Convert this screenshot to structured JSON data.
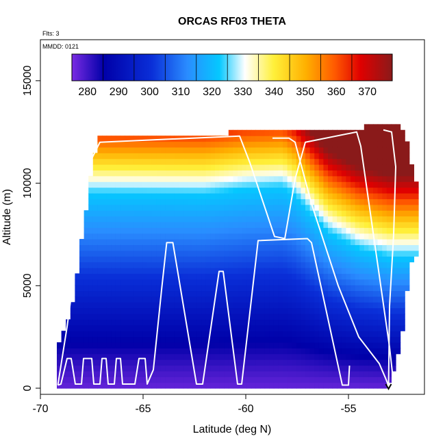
{
  "chart_data": {
    "type": "heatmap",
    "title": "ORCAS RF03 THETA",
    "annotations": {
      "flights": "Flts: 3",
      "date": "MMDD: 0121"
    },
    "xlabel": "Latitude (deg N)",
    "ylabel": "Altitude (m)",
    "xlim": [
      -70,
      -51.3
    ],
    "ylim": [
      -300,
      17000
    ],
    "xticks": [
      -70,
      -65,
      -60,
      -55
    ],
    "xtick_labels": [
      "-70",
      "-65",
      "-60",
      "-55"
    ],
    "yticks": [
      0,
      5000,
      10000,
      15000
    ],
    "ytick_labels": [
      "0",
      "5000",
      "10000",
      "15000"
    ],
    "colorbar": {
      "min": 275,
      "max": 378,
      "ticks": [
        280,
        290,
        300,
        310,
        320,
        330,
        340,
        350,
        360,
        370
      ],
      "tick_labels": [
        "280",
        "290",
        "300",
        "310",
        "320",
        "330",
        "340",
        "350",
        "360",
        "370"
      ],
      "boundaries": [
        285,
        295,
        305,
        315,
        325,
        335,
        345,
        355,
        365
      ],
      "colors": [
        "#7a2be3",
        "#0000a8",
        "#0a2fd8",
        "#2a8cff",
        "#05c8ff",
        "#ffffff",
        "#fff03a",
        "#ffb000",
        "#ff5a00",
        "#e00000",
        "#8a1a1a"
      ],
      "color_positions": [
        0,
        0.1,
        0.25,
        0.36,
        0.46,
        0.54,
        0.63,
        0.73,
        0.82,
        0.9,
        1.0
      ]
    },
    "field": {
      "lat_range": [
        -69.2,
        -51.8
      ],
      "lat_step": 0.22,
      "alt_step": 280,
      "top_alt_profile": [
        [
          -69.2,
          2000
        ],
        [
          -68.5,
          3500
        ],
        [
          -67.5,
          10500
        ],
        [
          -67.2,
          12200
        ],
        [
          -61,
          12200
        ],
        [
          -60.5,
          12500
        ],
        [
          -54.5,
          12500
        ],
        [
          -54.2,
          12700
        ],
        [
          -52.4,
          12700
        ],
        [
          -52.1,
          11600
        ],
        [
          -51.8,
          10000
        ]
      ],
      "bottom_alt_profile": [
        [
          -69.2,
          0
        ],
        [
          -54,
          0
        ],
        [
          -53,
          300
        ],
        [
          -52.5,
          2000
        ],
        [
          -52,
          6000
        ],
        [
          -51.8,
          6500
        ]
      ],
      "tropopause_profile": [
        [
          -70,
          9500
        ],
        [
          -62,
          9450
        ],
        [
          -60,
          9700
        ],
        [
          -58.2,
          9800
        ],
        [
          -57.6,
          9400
        ],
        [
          -57,
          8700
        ],
        [
          -56,
          7600
        ],
        [
          -54.5,
          6800
        ],
        [
          -53,
          6400
        ],
        [
          -52,
          6400
        ]
      ],
      "theta_surface": 277,
      "theta_at_tropopause": 322,
      "lapse_low_per_km": 4.5,
      "lapse_high_per_km": 14
    },
    "flight_track": [
      [
        -69.15,
        150
      ],
      [
        -69.0,
        200
      ],
      [
        -68.7,
        1450
      ],
      [
        -68.5,
        1450
      ],
      [
        -68.3,
        200
      ],
      [
        -68.0,
        200
      ],
      [
        -67.9,
        1450
      ],
      [
        -67.5,
        1450
      ],
      [
        -67.4,
        200
      ],
      [
        -67.1,
        200
      ],
      [
        -67.0,
        1450
      ],
      [
        -66.8,
        1450
      ],
      [
        -66.7,
        200
      ],
      [
        -66.4,
        200
      ],
      [
        -66.3,
        1450
      ],
      [
        -66.1,
        1450
      ],
      [
        -66.0,
        200
      ],
      [
        -65.4,
        200
      ],
      [
        -65.2,
        1450
      ],
      [
        -64.9,
        1450
      ],
      [
        -64.8,
        200
      ],
      [
        -64.5,
        900
      ],
      [
        -64.1,
        4800
      ],
      [
        -63.85,
        7100
      ],
      [
        -63.55,
        7100
      ],
      [
        -63.4,
        6200
      ],
      [
        -62.4,
        200
      ],
      [
        -62.1,
        200
      ],
      [
        -61.3,
        5700
      ],
      [
        -61.1,
        5700
      ],
      [
        -60.4,
        200
      ],
      [
        -60.2,
        200
      ],
      [
        -59.4,
        7200
      ],
      [
        -57.0,
        7300
      ],
      [
        -56.8,
        7100
      ],
      [
        -55.3,
        150
      ],
      [
        -55.0,
        150
      ],
      [
        -54.95,
        1100
      ]
    ],
    "flight_track_2": [
      [
        -69.15,
        150
      ],
      [
        -68.7,
        3000
      ],
      [
        -67.9,
        9000
      ],
      [
        -67.6,
        11000
      ],
      [
        -67.1,
        12000
      ],
      [
        -60.3,
        12300
      ],
      [
        -59.8,
        11000
      ],
      [
        -58.6,
        7400
      ],
      [
        -58.1,
        7300
      ],
      [
        -57.6,
        10200
      ],
      [
        -57.1,
        12000
      ],
      [
        -54.6,
        12500
      ],
      [
        -54.4,
        11800
      ],
      [
        -53.0,
        2000
      ],
      [
        -52.8,
        200
      ]
    ],
    "flight_track_3": [
      [
        -58.7,
        12200
      ],
      [
        -57.9,
        12200
      ],
      [
        -57.6,
        12000
      ],
      [
        -56.8,
        9000
      ],
      [
        -55.5,
        5000
      ],
      [
        -54.5,
        2500
      ],
      [
        -53.5,
        1200
      ],
      [
        -53.2,
        500
      ],
      [
        -53.0,
        0
      ]
    ],
    "flight_track_4": [
      [
        -53.3,
        12600
      ],
      [
        -52.9,
        12500
      ],
      [
        -52.7,
        10800
      ],
      [
        -52.8,
        7500
      ],
      [
        -53.0,
        4000
      ],
      [
        -53.05,
        0
      ]
    ],
    "flight_end_marker": [
      -53.05,
      0
    ]
  }
}
